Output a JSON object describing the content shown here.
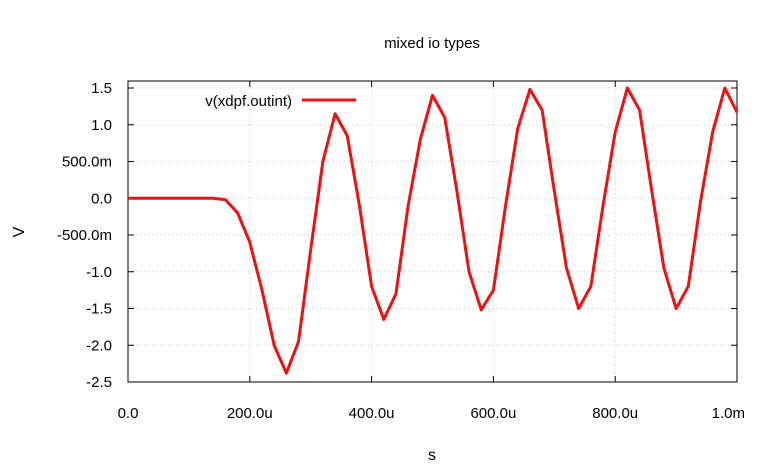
{
  "chart_data": {
    "type": "line",
    "title": "mixed io types",
    "xlabel": "s",
    "ylabel": "V",
    "xlim": [
      0,
      0.001
    ],
    "ylim": [
      -2.5,
      1.5
    ],
    "grid": true,
    "legend_position": "top-left",
    "x_ticks": [
      {
        "value": 0,
        "label": "0.0"
      },
      {
        "value": 0.0002,
        "label": "200.0u"
      },
      {
        "value": 0.0004,
        "label": "400.0u"
      },
      {
        "value": 0.0006,
        "label": "600.0u"
      },
      {
        "value": 0.0008,
        "label": "800.0u"
      },
      {
        "value": 0.001,
        "label": "1.0m"
      }
    ],
    "y_ticks": [
      {
        "value": 1.5,
        "label": "1.5"
      },
      {
        "value": 1.0,
        "label": "1.0"
      },
      {
        "value": 0.5,
        "label": "500.0m"
      },
      {
        "value": 0.0,
        "label": "0.0"
      },
      {
        "value": -0.5,
        "label": "-500.0m"
      },
      {
        "value": -1.0,
        "label": "-1.0"
      },
      {
        "value": -1.5,
        "label": "-1.5"
      },
      {
        "value": -2.0,
        "label": "-2.0"
      },
      {
        "value": -2.5,
        "label": "-2.5"
      }
    ],
    "series": [
      {
        "name": "v(xdpf.outint)",
        "color": "#ee1111",
        "x": [
          0,
          2e-05,
          4e-05,
          6e-05,
          8e-05,
          0.0001,
          0.00012,
          0.00014,
          0.00016,
          0.00018,
          0.0002,
          0.00022,
          0.00024,
          0.00026,
          0.00028,
          0.0003,
          0.00032,
          0.00034,
          0.00036,
          0.00038,
          0.0004,
          0.00042,
          0.00044,
          0.00046,
          0.00048,
          0.0005,
          0.00052,
          0.00054,
          0.00056,
          0.00058,
          0.0006,
          0.00062,
          0.00064,
          0.00066,
          0.00068,
          0.0007,
          0.00072,
          0.00074,
          0.00076,
          0.00078,
          0.0008,
          0.00082,
          0.00084,
          0.00086,
          0.00088,
          0.0009,
          0.00092,
          0.00094,
          0.00096,
          0.00098,
          0.001
        ],
        "values": [
          0,
          0,
          0,
          0,
          0,
          0,
          0,
          0,
          -0.02,
          -0.2,
          -0.6,
          -1.25,
          -2.0,
          -2.38,
          -1.95,
          -0.7,
          0.5,
          1.15,
          0.85,
          -0.1,
          -1.2,
          -1.65,
          -1.3,
          -0.1,
          0.8,
          1.4,
          1.1,
          0.1,
          -1.0,
          -1.52,
          -1.25,
          -0.1,
          0.95,
          1.48,
          1.2,
          0.1,
          -0.95,
          -1.5,
          -1.2,
          -0.1,
          0.9,
          1.5,
          1.2,
          0.1,
          -0.95,
          -1.5,
          -1.2,
          -0.05,
          0.9,
          1.5,
          1.17
        ]
      }
    ]
  }
}
